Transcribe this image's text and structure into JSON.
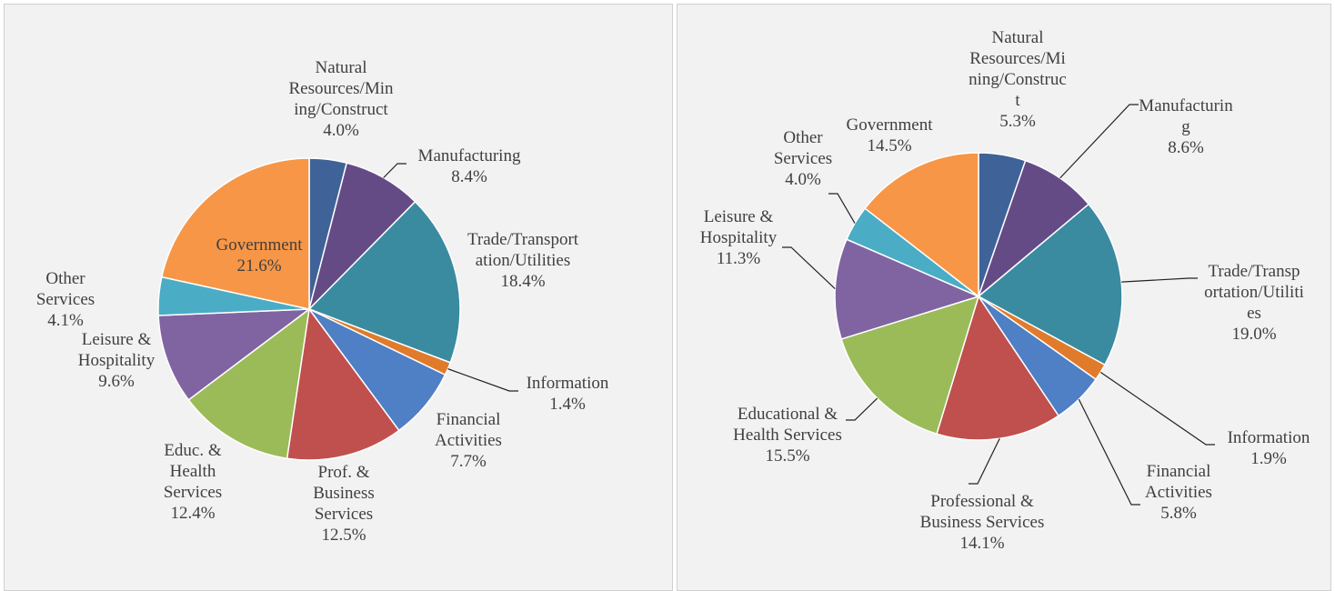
{
  "chart_data": [
    {
      "type": "pie",
      "categories": [
        "Natural Resources/Mining/Construct",
        "Manufacturing",
        "Trade/Transportation/Utilities",
        "Information",
        "Financial Activities",
        "Prof. & Business Services",
        "Educ. & Health Services",
        "Leisure & Hospitality",
        "Other Services",
        "Government"
      ],
      "values": [
        4.0,
        8.4,
        18.4,
        1.4,
        7.7,
        12.5,
        12.4,
        9.6,
        4.1,
        21.6
      ],
      "value_labels": [
        "4.0%",
        "8.4%",
        "18.4%",
        "1.4%",
        "7.7%",
        "12.5%",
        "12.4%",
        "9.6%",
        "4.1%",
        "21.6%"
      ],
      "colors": [
        "#3f6298",
        "#654b86",
        "#3a8ba0",
        "#e07b2c",
        "#4f7fc4",
        "#c0504d",
        "#9bbb59",
        "#8064a2",
        "#4bacc6",
        "#f79646"
      ]
    },
    {
      "type": "pie",
      "categories": [
        "Natural Resources/Mining/Construct",
        "Manufacturing",
        "Trade/Transportation/Utilities",
        "Information",
        "Financial Activities",
        "Professional & Business Services",
        "Educational & Health Services",
        "Leisure & Hospitality",
        "Other Services",
        "Government"
      ],
      "values": [
        5.3,
        8.6,
        19.0,
        1.9,
        5.8,
        14.1,
        15.5,
        11.3,
        4.0,
        14.5
      ],
      "value_labels": [
        "5.3%",
        "8.6%",
        "19.0%",
        "1.9%",
        "5.8%",
        "14.1%",
        "15.5%",
        "11.3%",
        "4.0%",
        "14.5%"
      ],
      "colors": [
        "#3f6298",
        "#654b86",
        "#3a8ba0",
        "#e07b2c",
        "#4f7fc4",
        "#c0504d",
        "#9bbb59",
        "#8064a2",
        "#4bacc6",
        "#f79646"
      ]
    }
  ]
}
